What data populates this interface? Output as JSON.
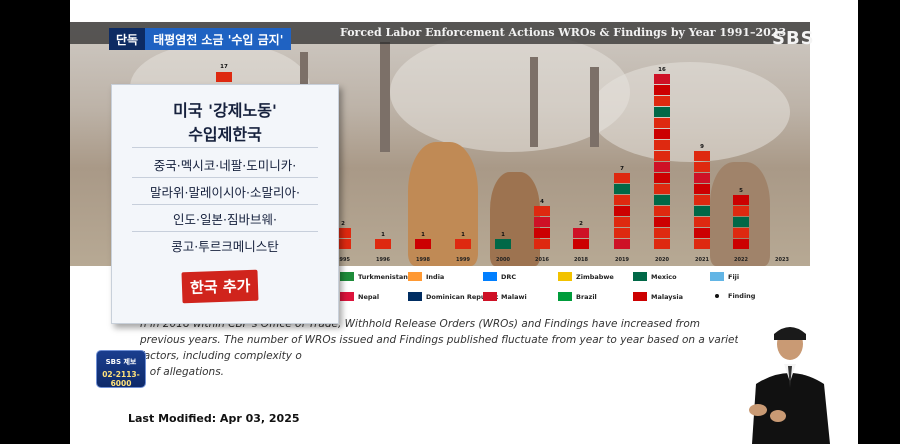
{
  "broadcast": {
    "exclusive_label": "단독",
    "headline": "태평염전 소금 '수입 금지'",
    "logo": "SBS",
    "report_line1": "SBS 제보",
    "report_line2": "02-2113-6000"
  },
  "card": {
    "title_line1": "미국 '강제노동'",
    "title_line2": "수입제한국",
    "row1": "중국·멕시코·네팔·도미니카·",
    "row2": "말라위·말레이시아·소말리아·",
    "row3": "인도·일본·짐바브웨·",
    "row4": "콩고·투르크메니스탄",
    "stamp": "한국 추가"
  },
  "chart_data": {
    "type": "bar",
    "title": "Forced Labor Enforcement Actions WROs & Findings by Year 1991–2023",
    "categories": [
      "1995",
      "1996",
      "1998",
      "1999",
      "2000",
      "2016",
      "2018",
      "2019",
      "2020",
      "2021",
      "2022",
      "2023"
    ],
    "values": [
      2,
      1,
      1,
      1,
      1,
      4,
      2,
      7,
      16,
      9,
      5,
      0
    ],
    "annotations": [
      {
        "label": "17"
      }
    ],
    "legend": [
      "Turkmenistan",
      "India",
      "DRC",
      "Zimbabwe",
      "Mexico",
      "Fiji",
      "Nepal",
      "Dominican Republic",
      "Malawi",
      "Brazil",
      "Malaysia",
      "Finding"
    ]
  },
  "legend_colors": {
    "Turkmenistan": "#1e8c3a",
    "India": "#ff9933",
    "DRC": "#007fff",
    "Zimbabwe": "#f2c200",
    "Mexico": "#006847",
    "Fiji": "#62b5e5",
    "Nepal": "#dc143c",
    "Dominican Republic": "#002d62",
    "Malawi": "#ce1126",
    "Brazil": "#009c3b",
    "Malaysia": "#cc0001",
    "Finding": "#111111"
  },
  "page": {
    "body_line1": "n in 2018 within CBP's Office of Trade, Withhold Release Orders (WROs) and Findings have increased from",
    "body_line2": "previous years. The number of WROs issued and Findings published fluctuate from year to year based on a variety of factors, including complexity o",
    "body_line3": "e of allegations.",
    "last_modified": "Last Modified: Apr 03, 2025"
  }
}
